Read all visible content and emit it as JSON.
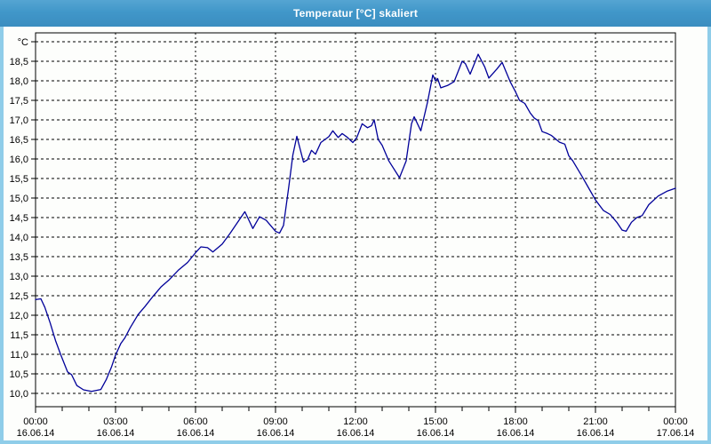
{
  "window": {
    "title": "Temperatur [°C] skaliert"
  },
  "colors": {
    "titlebar": "#4197c9",
    "titlebar_text": "#ffffff",
    "frame": "#8fcde9",
    "background": "#fdfefc",
    "plot_border": "#000000",
    "grid": "#000000",
    "line": "#000099",
    "label_text": "#000000"
  },
  "chart_data": {
    "type": "line",
    "title": "Temperatur [°C] skaliert",
    "legend": "none",
    "grid": "dashed",
    "y_axis": {
      "unit_top_label": "°C",
      "min": 10.0,
      "max": 19.0,
      "tick_step": 0.5,
      "tick_labels": [
        "18,5",
        "18,0",
        "17,5",
        "17,0",
        "16,5",
        "16,0",
        "15,5",
        "15,0",
        "14,5",
        "14,0",
        "13,5",
        "13,0",
        "12,5",
        "12,0",
        "11,5",
        "11,0",
        "10,5",
        "10,0"
      ]
    },
    "x_axis": {
      "range_hours": [
        0,
        24
      ],
      "minor_tick_hours": 1,
      "major_tick_hours": 3,
      "major_ticks": [
        {
          "time": "00:00",
          "date": "16.06.14"
        },
        {
          "time": "03:00",
          "date": "16.06.14"
        },
        {
          "time": "06:00",
          "date": "16.06.14"
        },
        {
          "time": "09:00",
          "date": "16.06.14"
        },
        {
          "time": "12:00",
          "date": "16.06.14"
        },
        {
          "time": "15:00",
          "date": "16.06.14"
        },
        {
          "time": "18:00",
          "date": "16.06.14"
        },
        {
          "time": "21:00",
          "date": "16.06.14"
        },
        {
          "time": "00:00",
          "date": "17.06.14"
        }
      ]
    },
    "series": [
      {
        "name": "Temperatur",
        "color": "#000099",
        "points": [
          [
            0.0,
            12.4
          ],
          [
            0.2,
            12.42
          ],
          [
            0.35,
            12.2
          ],
          [
            0.55,
            11.8
          ],
          [
            0.75,
            11.35
          ],
          [
            0.95,
            10.98
          ],
          [
            1.2,
            10.55
          ],
          [
            1.35,
            10.48
          ],
          [
            1.55,
            10.2
          ],
          [
            1.8,
            10.09
          ],
          [
            2.1,
            10.05
          ],
          [
            2.45,
            10.1
          ],
          [
            2.65,
            10.35
          ],
          [
            2.85,
            10.68
          ],
          [
            3.0,
            10.98
          ],
          [
            3.2,
            11.28
          ],
          [
            3.35,
            11.42
          ],
          [
            3.55,
            11.68
          ],
          [
            3.85,
            12.02
          ],
          [
            4.1,
            12.22
          ],
          [
            4.4,
            12.48
          ],
          [
            4.7,
            12.72
          ],
          [
            5.0,
            12.9
          ],
          [
            5.35,
            13.15
          ],
          [
            5.7,
            13.35
          ],
          [
            6.0,
            13.6
          ],
          [
            6.2,
            13.75
          ],
          [
            6.45,
            13.73
          ],
          [
            6.65,
            13.62
          ],
          [
            7.0,
            13.82
          ],
          [
            7.3,
            14.1
          ],
          [
            7.6,
            14.4
          ],
          [
            7.85,
            14.65
          ],
          [
            8.15,
            14.22
          ],
          [
            8.4,
            14.52
          ],
          [
            8.65,
            14.43
          ],
          [
            9.0,
            14.15
          ],
          [
            9.15,
            14.1
          ],
          [
            9.3,
            14.3
          ],
          [
            9.5,
            15.3
          ],
          [
            9.65,
            16.1
          ],
          [
            9.8,
            16.58
          ],
          [
            10.05,
            15.92
          ],
          [
            10.2,
            15.98
          ],
          [
            10.35,
            16.22
          ],
          [
            10.5,
            16.12
          ],
          [
            10.7,
            16.42
          ],
          [
            11.0,
            16.57
          ],
          [
            11.15,
            16.72
          ],
          [
            11.35,
            16.55
          ],
          [
            11.5,
            16.65
          ],
          [
            11.7,
            16.55
          ],
          [
            11.9,
            16.42
          ],
          [
            12.05,
            16.55
          ],
          [
            12.25,
            16.9
          ],
          [
            12.45,
            16.8
          ],
          [
            12.6,
            16.85
          ],
          [
            12.7,
            17.0
          ],
          [
            12.85,
            16.5
          ],
          [
            13.0,
            16.35
          ],
          [
            13.25,
            15.95
          ],
          [
            13.65,
            15.52
          ],
          [
            13.9,
            15.95
          ],
          [
            14.1,
            16.9
          ],
          [
            14.2,
            17.08
          ],
          [
            14.45,
            16.72
          ],
          [
            14.7,
            17.45
          ],
          [
            14.9,
            18.15
          ],
          [
            15.0,
            18.0
          ],
          [
            15.08,
            18.06
          ],
          [
            15.2,
            17.82
          ],
          [
            15.45,
            17.88
          ],
          [
            15.7,
            17.98
          ],
          [
            16.0,
            18.5
          ],
          [
            16.12,
            18.44
          ],
          [
            16.3,
            18.17
          ],
          [
            16.6,
            18.68
          ],
          [
            16.85,
            18.35
          ],
          [
            17.0,
            18.07
          ],
          [
            17.3,
            18.3
          ],
          [
            17.5,
            18.47
          ],
          [
            17.8,
            17.98
          ],
          [
            18.0,
            17.72
          ],
          [
            18.15,
            17.5
          ],
          [
            18.35,
            17.42
          ],
          [
            18.55,
            17.18
          ],
          [
            18.7,
            17.05
          ],
          [
            18.85,
            16.98
          ],
          [
            19.0,
            16.7
          ],
          [
            19.2,
            16.65
          ],
          [
            19.35,
            16.6
          ],
          [
            19.65,
            16.43
          ],
          [
            19.85,
            16.38
          ],
          [
            20.0,
            16.08
          ],
          [
            20.15,
            15.95
          ],
          [
            20.5,
            15.55
          ],
          [
            20.75,
            15.25
          ],
          [
            21.0,
            14.95
          ],
          [
            21.3,
            14.68
          ],
          [
            21.55,
            14.58
          ],
          [
            21.8,
            14.38
          ],
          [
            22.0,
            14.18
          ],
          [
            22.15,
            14.15
          ],
          [
            22.35,
            14.38
          ],
          [
            22.55,
            14.5
          ],
          [
            22.75,
            14.55
          ],
          [
            23.0,
            14.83
          ],
          [
            23.35,
            15.05
          ],
          [
            23.7,
            15.18
          ],
          [
            24.0,
            15.25
          ]
        ]
      }
    ]
  }
}
